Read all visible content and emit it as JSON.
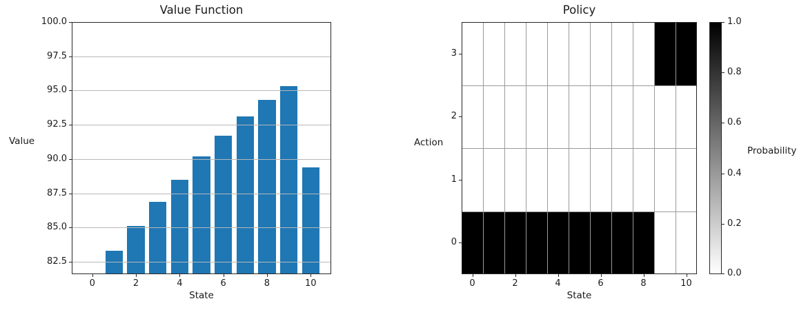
{
  "figure": {
    "background": "#ffffff"
  },
  "colors": {
    "bar": "#1f77b4",
    "grid": "#b8b8b8",
    "heat_grid": "#9a9a9a",
    "spine": "#262626",
    "text": "#1a1a1a",
    "cell_on": "#000000",
    "cell_off": "#ffffff"
  },
  "chart_data": [
    {
      "type": "bar",
      "title": "Value Function",
      "xlabel": "State",
      "ylabel": "Value",
      "categories": [
        0,
        1,
        2,
        3,
        4,
        5,
        6,
        7,
        8,
        9,
        10
      ],
      "values": [
        null,
        83.3,
        85.1,
        86.9,
        88.5,
        90.2,
        91.7,
        93.1,
        94.3,
        95.3,
        89.4
      ],
      "bar_color": "#1f77b4",
      "bar_width": 0.8,
      "xlim": [
        -0.94,
        10.94
      ],
      "ylim": [
        81.6,
        100.0
      ],
      "yticks": [
        82.5,
        85.0,
        87.5,
        90.0,
        92.5,
        95.0,
        97.5,
        100.0
      ],
      "yticklabels": [
        "82.5",
        "85.0",
        "87.5",
        "90.0",
        "92.5",
        "95.0",
        "97.5",
        "100.0"
      ],
      "xticks": [
        0,
        2,
        4,
        6,
        8,
        10
      ],
      "xticklabels": [
        "0",
        "2",
        "4",
        "6",
        "8",
        "10"
      ],
      "grid": "horizontal-gridlines-drawn-over-bars",
      "legend": "none"
    },
    {
      "type": "heatmap",
      "title": "Policy",
      "xlabel": "State",
      "ylabel": "Action",
      "x": [
        0,
        1,
        2,
        3,
        4,
        5,
        6,
        7,
        8,
        9,
        10
      ],
      "y": [
        0,
        1,
        2,
        3
      ],
      "matrix_rows_action_0_to_3": [
        [
          1,
          1,
          1,
          1,
          1,
          1,
          1,
          1,
          1,
          0,
          0
        ],
        [
          0,
          0,
          0,
          0,
          0,
          0,
          0,
          0,
          0,
          0,
          0
        ],
        [
          0,
          0,
          0,
          0,
          0,
          0,
          0,
          0,
          0,
          0,
          0
        ],
        [
          0,
          0,
          0,
          0,
          0,
          0,
          0,
          0,
          0,
          1,
          1
        ]
      ],
      "xlim": [
        -0.5,
        10.5
      ],
      "ylim": [
        -0.5,
        3.5
      ],
      "xticks": [
        0,
        2,
        4,
        6,
        8,
        10
      ],
      "xticklabels": [
        "0",
        "2",
        "4",
        "6",
        "8",
        "10"
      ],
      "yticks": [
        0,
        1,
        2,
        3
      ],
      "yticklabels": [
        "0",
        "1",
        "2",
        "3"
      ],
      "colormap": "Greys",
      "colorbar": {
        "label": "Probability",
        "vmin": 0.0,
        "vmax": 1.0,
        "ticks": [
          0.0,
          0.2,
          0.4,
          0.6,
          0.8,
          1.0
        ],
        "ticklabels": [
          "0.0",
          "0.2",
          "0.4",
          "0.6",
          "0.8",
          "1.0"
        ],
        "top_color": "#000000",
        "bottom_color": "#ffffff"
      }
    }
  ]
}
